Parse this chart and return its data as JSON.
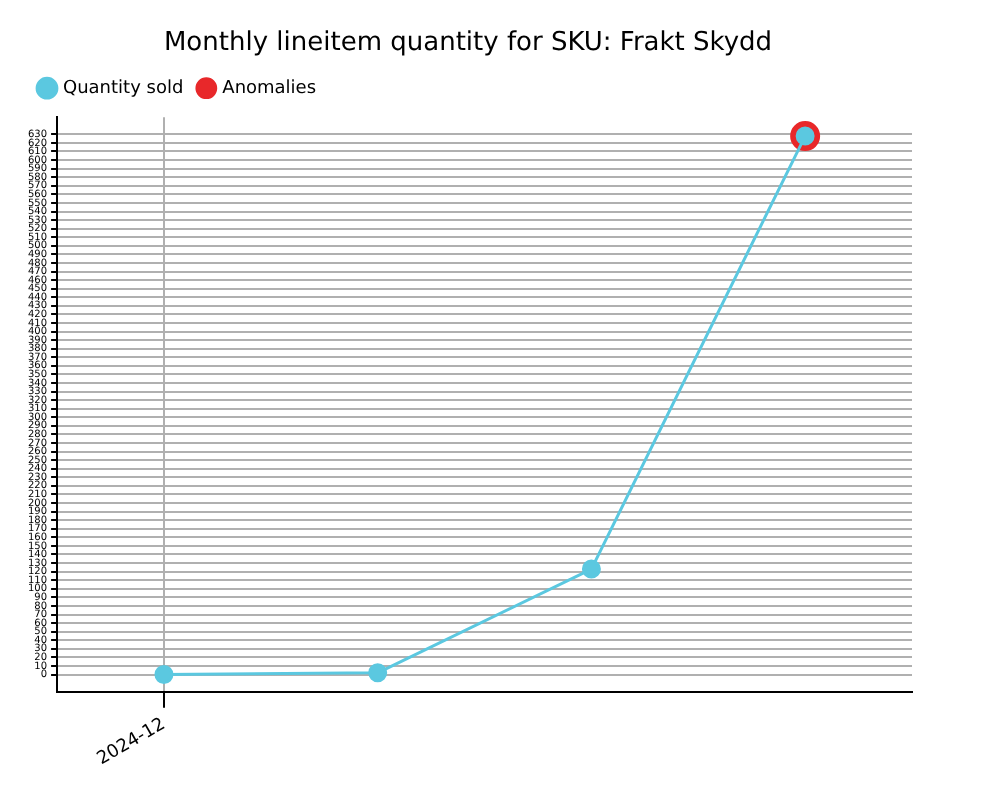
{
  "chart_data": {
    "type": "line",
    "title": "Monthly lineitem quantity for SKU: Frakt Skydd",
    "categories": [
      "2024-12",
      null,
      null,
      null
    ],
    "series": [
      {
        "name": "Quantity sold",
        "color": "#5bc8e0",
        "values": [
          0,
          2,
          123,
          628
        ],
        "marker": "circle"
      },
      {
        "name": "Anomalies",
        "type": "scatter",
        "color": "#e8282a",
        "values": [
          null,
          null,
          null,
          628
        ],
        "marker": "circle"
      }
    ],
    "ylim": [
      -20,
      650
    ],
    "yticks": [
      0,
      10,
      20,
      30,
      40,
      50,
      60,
      70,
      80,
      90,
      100,
      110,
      120,
      130,
      140,
      150,
      160,
      170,
      180,
      190,
      200,
      210,
      220,
      230,
      240,
      250,
      260,
      270,
      280,
      290,
      300,
      310,
      320,
      330,
      340,
      350,
      360,
      370,
      380,
      390,
      400,
      410,
      420,
      430,
      440,
      450,
      460,
      470,
      480,
      490,
      500,
      510,
      520,
      530,
      540,
      550,
      560,
      570,
      580,
      590,
      600,
      610,
      620,
      630
    ],
    "grid": true,
    "legend": "top left"
  }
}
